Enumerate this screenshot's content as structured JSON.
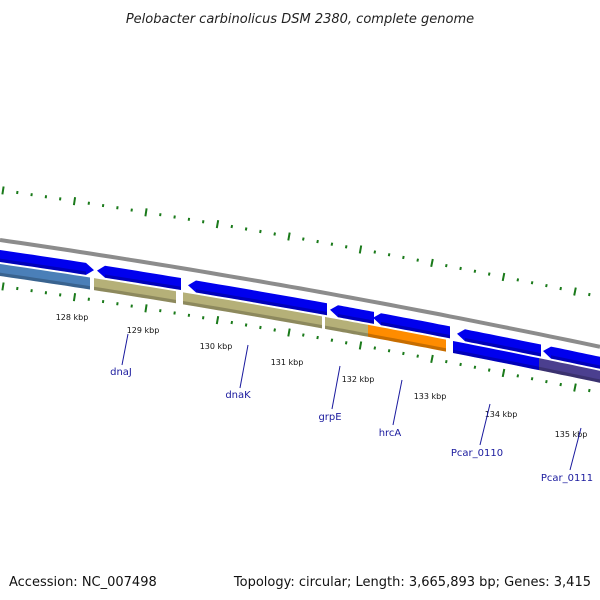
{
  "title": "Pelobacter carbinolicus DSM 2380, complete genome",
  "footer": {
    "accession": "Accession: NC_007498",
    "summary": "Topology: circular; Length: 3,665,893 bp; Genes: 3,415"
  },
  "tick_labels": [
    "128 kbp",
    "129 kbp",
    "130 kbp",
    "131 kbp",
    "132 kbp",
    "133 kbp",
    "134 kbp",
    "135 kbp"
  ],
  "gene_labels": [
    "dnaJ",
    "dnaK",
    "grpE",
    "hrcA",
    "Pcar_0110",
    "Pcar_0111"
  ],
  "colors": {
    "backbone": "#8c8c8c",
    "forward_gene": "#0000ee",
    "reverse_gene": "#0000ee",
    "khaki_feature": "#b5b078",
    "orange_feature": "#ff8c00",
    "steelblue_feature": "#4a7fb8",
    "purple_feature": "#4b3f8f",
    "ticks_green": "#1a7a1a",
    "label_blue": "#1a1a9e"
  }
}
